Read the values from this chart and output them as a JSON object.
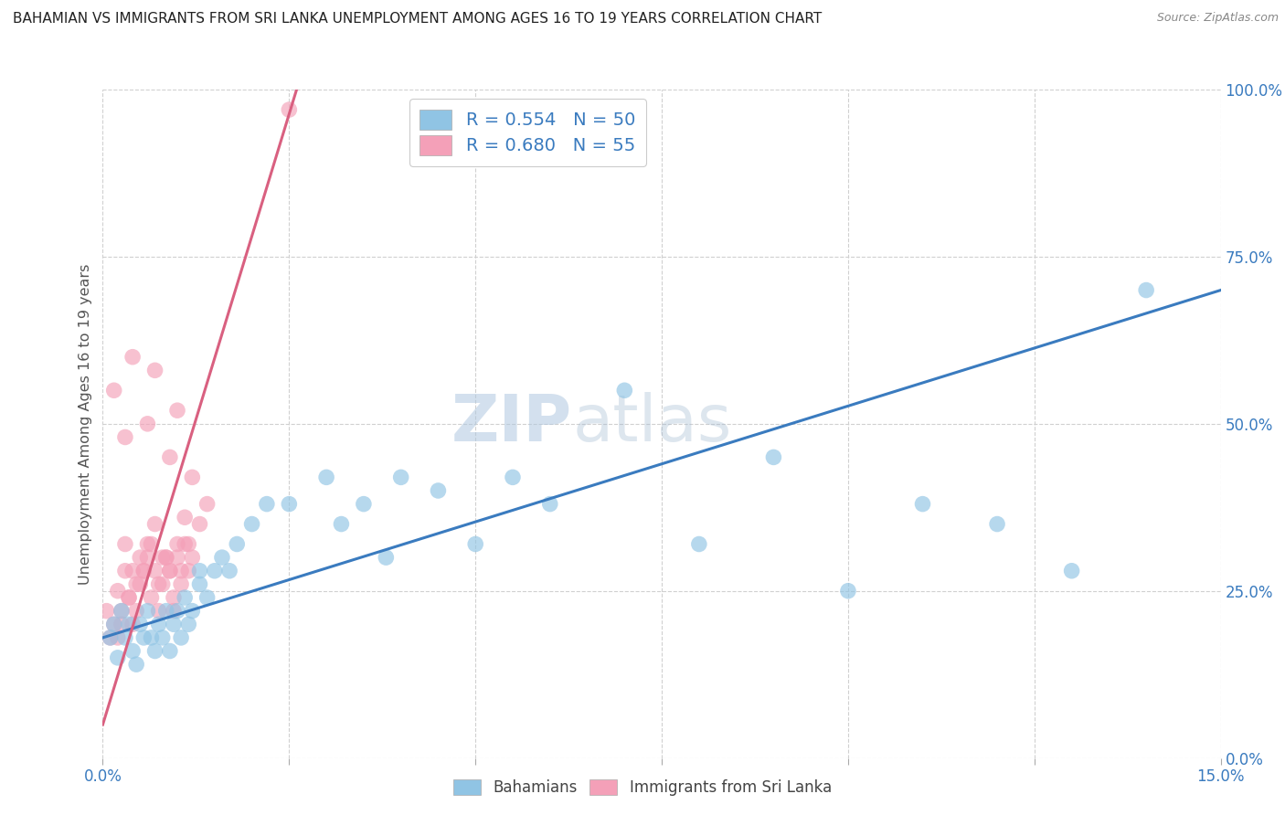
{
  "title": "BAHAMIAN VS IMMIGRANTS FROM SRI LANKA UNEMPLOYMENT AMONG AGES 16 TO 19 YEARS CORRELATION CHART",
  "source": "Source: ZipAtlas.com",
  "ylabel": "Unemployment Among Ages 16 to 19 years",
  "ytick_labels": [
    "0.0%",
    "25.0%",
    "50.0%",
    "75.0%",
    "100.0%"
  ],
  "ytick_values": [
    0,
    25,
    50,
    75,
    100
  ],
  "xlim": [
    0,
    15
  ],
  "ylim": [
    0,
    100
  ],
  "legend_blue_text": "R = 0.554   N = 50",
  "legend_pink_text": "R = 0.680   N = 55",
  "blue_color": "#90c4e4",
  "pink_color": "#f4a0b8",
  "blue_line_color": "#3a7bbf",
  "pink_line_color": "#d96080",
  "watermark_zip": "ZIP",
  "watermark_atlas": "atlas",
  "blue_scatter_x": [
    0.1,
    0.15,
    0.2,
    0.25,
    0.3,
    0.35,
    0.4,
    0.45,
    0.5,
    0.55,
    0.6,
    0.65,
    0.7,
    0.75,
    0.8,
    0.85,
    0.9,
    0.95,
    1.0,
    1.05,
    1.1,
    1.15,
    1.2,
    1.3,
    1.4,
    1.5,
    1.6,
    1.7,
    1.8,
    2.0,
    2.2,
    2.5,
    3.0,
    3.5,
    4.0,
    4.5,
    5.0,
    5.5,
    6.0,
    7.0,
    8.0,
    9.0,
    10.0,
    11.0,
    12.0,
    13.0,
    14.0,
    3.2,
    3.8,
    1.3
  ],
  "blue_scatter_y": [
    18,
    20,
    15,
    22,
    18,
    20,
    16,
    14,
    20,
    18,
    22,
    18,
    16,
    20,
    18,
    22,
    16,
    20,
    22,
    18,
    24,
    20,
    22,
    26,
    24,
    28,
    30,
    28,
    32,
    35,
    38,
    38,
    42,
    38,
    42,
    40,
    32,
    42,
    38,
    55,
    32,
    45,
    25,
    38,
    35,
    28,
    70,
    35,
    30,
    28
  ],
  "pink_scatter_x": [
    0.05,
    0.1,
    0.15,
    0.2,
    0.25,
    0.3,
    0.35,
    0.4,
    0.45,
    0.5,
    0.55,
    0.6,
    0.65,
    0.7,
    0.75,
    0.8,
    0.85,
    0.9,
    0.95,
    1.0,
    1.05,
    1.1,
    1.15,
    1.2,
    1.3,
    1.4,
    0.3,
    0.4,
    0.5,
    0.6,
    0.7,
    0.8,
    0.9,
    1.0,
    1.1,
    0.2,
    0.25,
    0.35,
    0.45,
    0.55,
    0.65,
    0.75,
    0.85,
    0.95,
    1.05,
    1.15,
    0.15,
    0.3,
    0.6,
    0.9,
    1.2,
    0.4,
    0.7,
    1.0,
    2.5
  ],
  "pink_scatter_y": [
    22,
    18,
    20,
    25,
    22,
    28,
    24,
    20,
    22,
    26,
    28,
    30,
    24,
    28,
    22,
    26,
    30,
    28,
    22,
    30,
    26,
    32,
    28,
    30,
    35,
    38,
    32,
    28,
    30,
    32,
    35,
    30,
    28,
    32,
    36,
    18,
    20,
    24,
    26,
    28,
    32,
    26,
    30,
    24,
    28,
    32,
    55,
    48,
    50,
    45,
    42,
    60,
    58,
    52,
    97
  ],
  "blue_trend_x": [
    0,
    15
  ],
  "blue_trend_y": [
    18,
    70
  ],
  "pink_trend_x": [
    0,
    2.6
  ],
  "pink_trend_y": [
    5,
    100
  ],
  "background_color": "#ffffff",
  "grid_color": "#d0d0d0",
  "title_color": "#222222",
  "axis_label_color": "#555555",
  "source_color": "#888888"
}
